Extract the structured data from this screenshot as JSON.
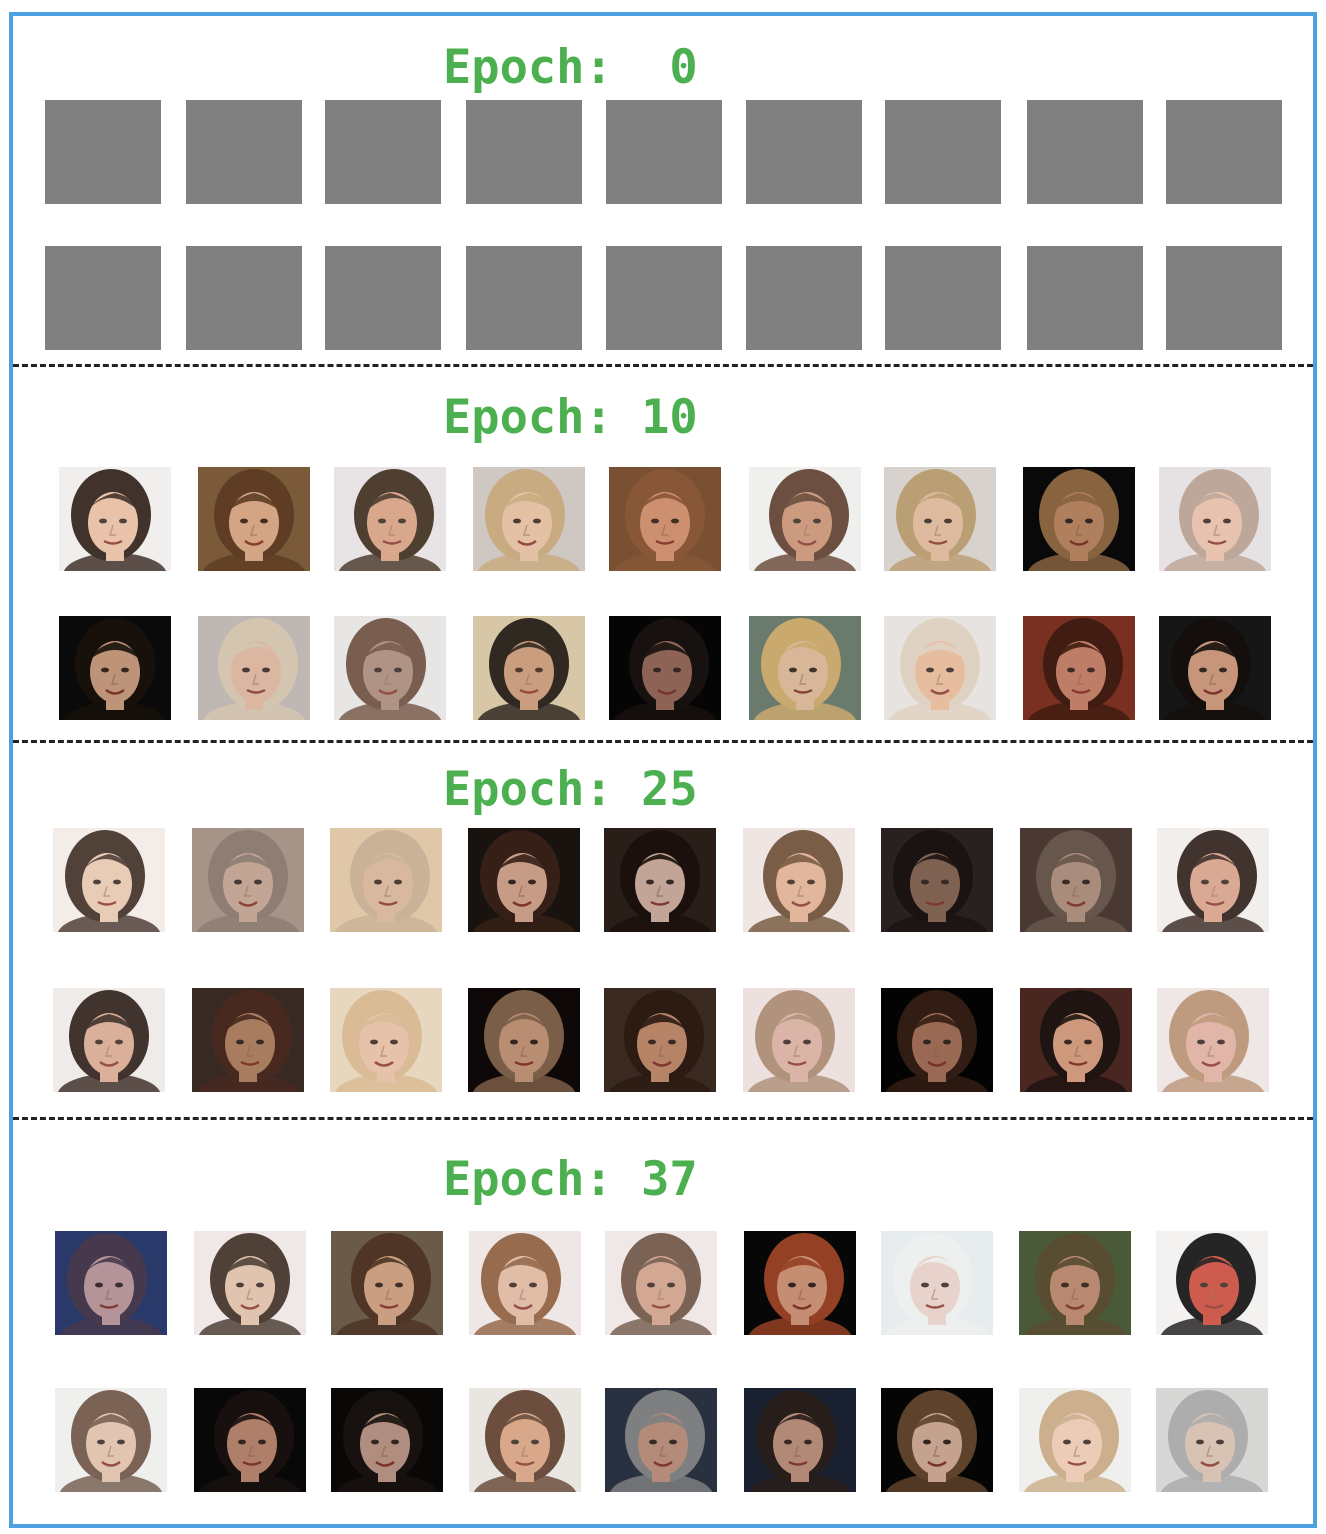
{
  "sections": [
    {
      "label": "Epoch:",
      "value": "0"
    },
    {
      "label": "Epoch:",
      "value": "10"
    },
    {
      "label": "Epoch:",
      "value": "25"
    },
    {
      "label": "Epoch:",
      "value": "37"
    }
  ],
  "colors": {
    "border": "#4aa3e0",
    "label": "#4caf50",
    "divider": "#222222",
    "blank_tile": "#808080"
  },
  "samples_per_row": 9,
  "rows_per_section": 2,
  "palettes": {
    "epoch10_row1": [
      "#f2efee",
      "#7a5a3a",
      "#e9e4e6",
      "#cfc8c2",
      "#7a5034",
      "#f0efee",
      "#d9d2cf",
      "#0a0a0a",
      "#e6e2e3"
    ],
    "epoch10_row2": [
      "#0b0b0b",
      "#bfb8b4",
      "#e9e6e4",
      "#d8c8a8",
      "#050505",
      "#6a7a6e",
      "#e7e3e1",
      "#7a3020",
      "#161616"
    ],
    "epoch25_row1": [
      "#f4ecea",
      "#a89488",
      "#e0c8a8",
      "#1a1410",
      "#2a1e18",
      "#efe6e4",
      "#2a2220",
      "#4a3a34",
      "#f2eeec"
    ],
    "epoch25_row2": [
      "#f0ebe9",
      "#3a2a24",
      "#e8d8c0",
      "#0e0a08",
      "#3a2a22",
      "#ece2de",
      "#040404",
      "#4a2620",
      "#f0e8e6"
    ],
    "epoch37_row1": [
      "#2a3a6a",
      "#efe9e6",
      "#6a5a4a",
      "#efe8e6",
      "#f0e9e6",
      "#070707",
      "#e8ecef",
      "#4a5a38",
      "#f4f2f2"
    ],
    "epoch37_row2": [
      "#f0f0ee",
      "#0a0808",
      "#0a0806",
      "#eae6e2",
      "#2a3040",
      "#1a2030",
      "#050505",
      "#f0f0ee",
      "#d8d8d6"
    ]
  },
  "skin_tones": {
    "epoch10_row1": [
      "#e8bca0",
      "#e0b090",
      "#d8a080",
      "#e8c0a0",
      "#d89878",
      "#c89070",
      "#e0b898",
      "#c8906a",
      "#e8c0a8"
    ],
    "epoch10_row2": [
      "#d8a888",
      "#e0b8a0",
      "#a88878",
      "#c89878",
      "#a07060",
      "#e8c0a0",
      "#e8b898",
      "#c88870",
      "#e0a888"
    ],
    "epoch25_row1": [
      "#e8c8b0",
      "#c8a898",
      "#d8b8a0",
      "#e0b098",
      "#d8b8a8",
      "#e0b090",
      "#8a6a58",
      "#b89888",
      "#d8a088"
    ],
    "epoch25_row2": [
      "#d8a890",
      "#b88868",
      "#e8c0a8",
      "#d0a080",
      "#c89070",
      "#d8b0a0",
      "#b07860",
      "#e0a888",
      "#e0b0a0"
    ],
    "epoch37_row1": [
      "#c8a0a0",
      "#e0c0a8",
      "#d8a888",
      "#e0b8a0",
      "#d0a088",
      "#e0a080",
      "#e8d0c8",
      "#c89078",
      "#c84838"
    ],
    "epoch37_row2": [
      "#e0c0a8",
      "#c89078",
      "#c8a090",
      "#d8a080",
      "#c89880",
      "#c89880",
      "#e0b8a0",
      "#ecc8b0",
      "#d8c0b0"
    ]
  },
  "hair_tones": {
    "epoch10_row1": [
      "#2a1a12",
      "#5a3a22",
      "#3a2818",
      "#c8a878",
      "#8a5838",
      "#5a3a28",
      "#b89868",
      "#9a7048",
      "#b8a090"
    ],
    "epoch10_row2": [
      "#1a120c",
      "#d8c8b0",
      "#6a4a3a",
      "#1a1410",
      "#1a1410",
      "#d8b070",
      "#e0d0c0",
      "#3a1a10",
      "#140e0c"
    ],
    "epoch25_row1": [
      "#3a2a22",
      "#8a7a70",
      "#c8b098",
      "#3a2218",
      "#1a0e0a",
      "#6a4a30",
      "#1a1210",
      "#6a5a50",
      "#2a1a14"
    ],
    "epoch25_row2": [
      "#2a1a14",
      "#4a2a20",
      "#d8b890",
      "#8a6a50",
      "#2a1a12",
      "#a88870",
      "#3a2218",
      "#1a1210",
      "#b89070"
    ],
    "epoch37_row1": [
      "#4a3a4a",
      "#3a2a20",
      "#4a3020",
      "#8a5a3a",
      "#6a5040",
      "#a84828",
      "#f0f0f0",
      "#5a4a30",
      "#0a0a0a"
    ],
    "epoch37_row2": [
      "#6a5040",
      "#1a1210",
      "#1a1410",
      "#5a3a28",
      "#8a8a8a",
      "#2a1e18",
      "#6a4a30",
      "#c8a880",
      "#a8a8a8"
    ]
  }
}
